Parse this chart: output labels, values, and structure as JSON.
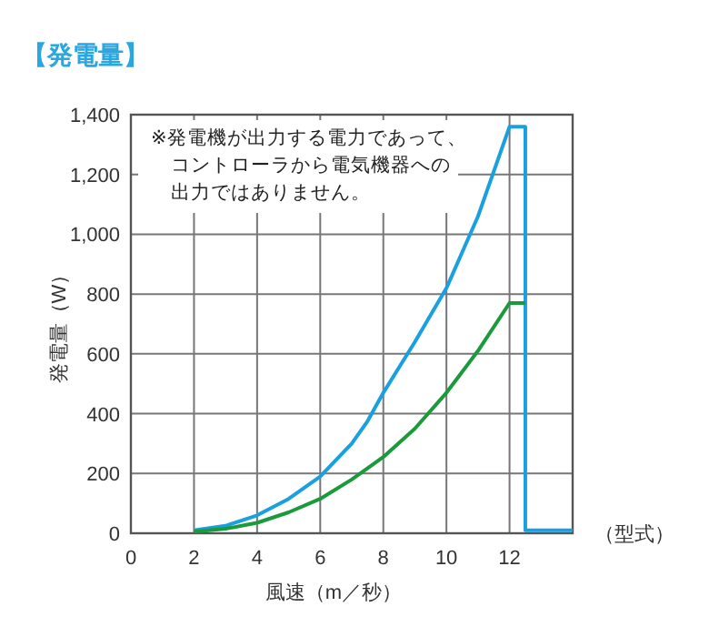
{
  "chart_data": {
    "type": "line",
    "title": "【発電量】",
    "xlabel": "風速（m／秒）",
    "ylabel": "発電量（W）",
    "xlim": [
      0,
      14
    ],
    "xticks": [
      0,
      2,
      4,
      6,
      8,
      10,
      12
    ],
    "ylim": [
      0,
      1400
    ],
    "yticks": [
      0,
      200,
      400,
      600,
      800,
      {
        "value": 1000,
        "label": "1,000"
      },
      {
        "value": 1200,
        "label": "1,200"
      },
      {
        "value": 1400,
        "label": "1,400"
      }
    ],
    "grid": true,
    "marker": "none",
    "line_style": "solid",
    "annotations": [
      "※発電機が出力する電力であって、",
      "コントローラから電気機器への",
      "出力ではありません。",
      "（型式）"
    ],
    "series": [
      {
        "color": "#1aa0e0",
        "x": [
          2,
          3,
          4,
          5,
          6,
          7,
          7.5,
          8,
          9,
          10,
          11,
          12,
          12.5,
          12.5,
          14
        ],
        "values": [
          10,
          25,
          60,
          115,
          190,
          300,
          375,
          470,
          640,
          820,
          1060,
          1360,
          1360,
          10,
          10
        ]
      },
      {
        "color": "#1a9a3a",
        "x": [
          2,
          3,
          4,
          5,
          6,
          7,
          8,
          9,
          10,
          11,
          12,
          12.5
        ],
        "values": [
          5,
          15,
          35,
          70,
          115,
          180,
          255,
          350,
          470,
          610,
          770,
          770
        ]
      }
    ]
  }
}
